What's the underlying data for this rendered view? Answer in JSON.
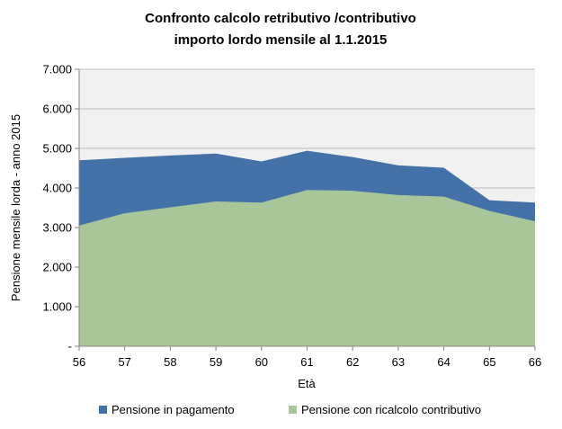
{
  "chart_data": {
    "type": "area",
    "title_lines": [
      "Confronto calcolo retributivo /contributivo",
      "importo lordo mensile al 1.1.2015"
    ],
    "xlabel": "Età",
    "ylabel": "Pensione mensile lorda - anno 2015",
    "x": [
      56,
      57,
      58,
      59,
      60,
      61,
      62,
      63,
      64,
      65,
      66
    ],
    "x_tick_labels": [
      "56",
      "57",
      "58",
      "59",
      "60",
      "61",
      "62",
      "63",
      "64",
      "65",
      "66"
    ],
    "ylim": [
      0,
      7000
    ],
    "y_tick_values": [
      0,
      1000,
      2000,
      3000,
      4000,
      5000,
      6000,
      7000
    ],
    "y_tick_labels": [
      "-",
      "1.000",
      "2.000",
      "3.000",
      "4.000",
      "5.000",
      "6.000",
      "7.000"
    ],
    "series": [
      {
        "name": "Pensione in pagamento",
        "color": "#4472A8",
        "values": [
          4700,
          4760,
          4820,
          4870,
          4670,
          4940,
          4780,
          4570,
          4510,
          3690,
          3630
        ]
      },
      {
        "name": "Pensione con ricalcolo contributivo",
        "color": "#A9C59A",
        "values": [
          3050,
          3360,
          3510,
          3660,
          3630,
          3950,
          3930,
          3820,
          3780,
          3420,
          3160
        ]
      }
    ],
    "grid": true,
    "legend_position": "bottom",
    "plot_background": "#F0F0F0"
  }
}
